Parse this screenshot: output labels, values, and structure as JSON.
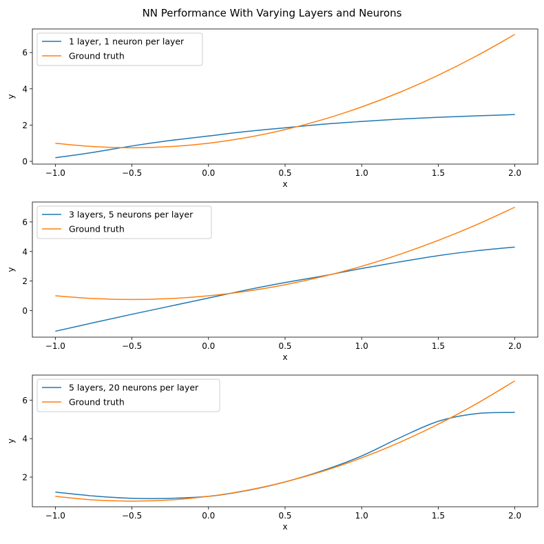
{
  "suptitle": "NN Performance With Varying Layers and Neurons",
  "colors": {
    "nn": "#1f77b4",
    "truth": "#ff7f0e"
  },
  "chart_data": [
    {
      "type": "line",
      "xlabel": "x",
      "ylabel": "y",
      "xlim": [
        -1.15,
        2.15
      ],
      "ylim": [
        -0.15,
        7.3
      ],
      "xticks": [
        -1.0,
        -0.5,
        0.0,
        0.5,
        1.0,
        1.5,
        2.0
      ],
      "xtick_labels": [
        "−1.0",
        "−0.5",
        "0.0",
        "0.5",
        "1.0",
        "1.5",
        "2.0"
      ],
      "yticks": [
        0,
        2,
        4,
        6
      ],
      "ytick_labels": [
        "0",
        "2",
        "4",
        "6"
      ],
      "legend": {
        "location": "upper-left"
      },
      "series": [
        {
          "name": "1 layer, 1 neuron per layer",
          "color": "#1f77b4",
          "x": [
            -1.0,
            -0.75,
            -0.5,
            -0.25,
            0.0,
            0.25,
            0.5,
            0.75,
            1.0,
            1.25,
            1.5,
            1.75,
            2.0
          ],
          "y": [
            0.2,
            0.5,
            0.85,
            1.15,
            1.4,
            1.65,
            1.85,
            2.05,
            2.2,
            2.33,
            2.43,
            2.51,
            2.58
          ]
        },
        {
          "name": "Ground truth",
          "color": "#ff7f0e",
          "x": [
            -1.0,
            -0.75,
            -0.5,
            -0.25,
            0.0,
            0.25,
            0.5,
            0.75,
            1.0,
            1.25,
            1.5,
            1.75,
            2.0
          ],
          "y": [
            1.0,
            0.8125,
            0.75,
            0.8125,
            1.0,
            1.3125,
            1.75,
            2.3125,
            3.0,
            3.8125,
            4.75,
            5.8125,
            7.0
          ]
        }
      ]
    },
    {
      "type": "line",
      "xlabel": "x",
      "ylabel": "y",
      "xlim": [
        -1.15,
        2.15
      ],
      "ylim": [
        -1.8,
        7.35
      ],
      "xticks": [
        -1.0,
        -0.5,
        0.0,
        0.5,
        1.0,
        1.5,
        2.0
      ],
      "xtick_labels": [
        "−1.0",
        "−0.5",
        "0.0",
        "0.5",
        "1.0",
        "1.5",
        "2.0"
      ],
      "yticks": [
        0,
        2,
        4,
        6
      ],
      "ytick_labels": [
        "0",
        "2",
        "4",
        "6"
      ],
      "legend": {
        "location": "upper-left"
      },
      "series": [
        {
          "name": "3 layers, 5 neurons per layer",
          "color": "#1f77b4",
          "x": [
            -1.0,
            -0.75,
            -0.5,
            -0.25,
            0.0,
            0.25,
            0.5,
            0.75,
            1.0,
            1.25,
            1.5,
            1.75,
            2.0
          ],
          "y": [
            -1.4,
            -0.82,
            -0.25,
            0.3,
            0.85,
            1.4,
            1.9,
            2.35,
            2.85,
            3.3,
            3.72,
            4.05,
            4.3
          ]
        },
        {
          "name": "Ground truth",
          "color": "#ff7f0e",
          "x": [
            -1.0,
            -0.75,
            -0.5,
            -0.25,
            0.0,
            0.25,
            0.5,
            0.75,
            1.0,
            1.25,
            1.5,
            1.75,
            2.0
          ],
          "y": [
            1.0,
            0.8125,
            0.75,
            0.8125,
            1.0,
            1.3125,
            1.75,
            2.3125,
            3.0,
            3.8125,
            4.75,
            5.8125,
            7.0
          ]
        }
      ]
    },
    {
      "type": "line",
      "xlabel": "x",
      "ylabel": "y",
      "xlim": [
        -1.15,
        2.15
      ],
      "ylim": [
        0.46,
        7.3
      ],
      "xticks": [
        -1.0,
        -0.5,
        0.0,
        0.5,
        1.0,
        1.5,
        2.0
      ],
      "xtick_labels": [
        "−1.0",
        "−0.5",
        "0.0",
        "0.5",
        "1.0",
        "1.5",
        "2.0"
      ],
      "yticks": [
        2,
        4,
        6
      ],
      "ytick_labels": [
        "2",
        "4",
        "6"
      ],
      "legend": {
        "location": "upper-left"
      },
      "series": [
        {
          "name": "5 layers, 20 neurons per layer",
          "color": "#1f77b4",
          "x": [
            -1.0,
            -0.75,
            -0.5,
            -0.25,
            0.0,
            0.25,
            0.5,
            0.75,
            1.0,
            1.25,
            1.5,
            1.75,
            2.0
          ],
          "y": [
            1.22,
            1.02,
            0.9,
            0.9,
            1.0,
            1.3,
            1.75,
            2.35,
            3.1,
            4.05,
            4.9,
            5.3,
            5.36
          ]
        },
        {
          "name": "Ground truth",
          "color": "#ff7f0e",
          "x": [
            -1.0,
            -0.75,
            -0.5,
            -0.25,
            0.0,
            0.25,
            0.5,
            0.75,
            1.0,
            1.25,
            1.5,
            1.75,
            2.0
          ],
          "y": [
            1.0,
            0.8125,
            0.75,
            0.8125,
            1.0,
            1.3125,
            1.75,
            2.3125,
            3.0,
            3.8125,
            4.75,
            5.8125,
            7.0
          ]
        }
      ]
    }
  ]
}
